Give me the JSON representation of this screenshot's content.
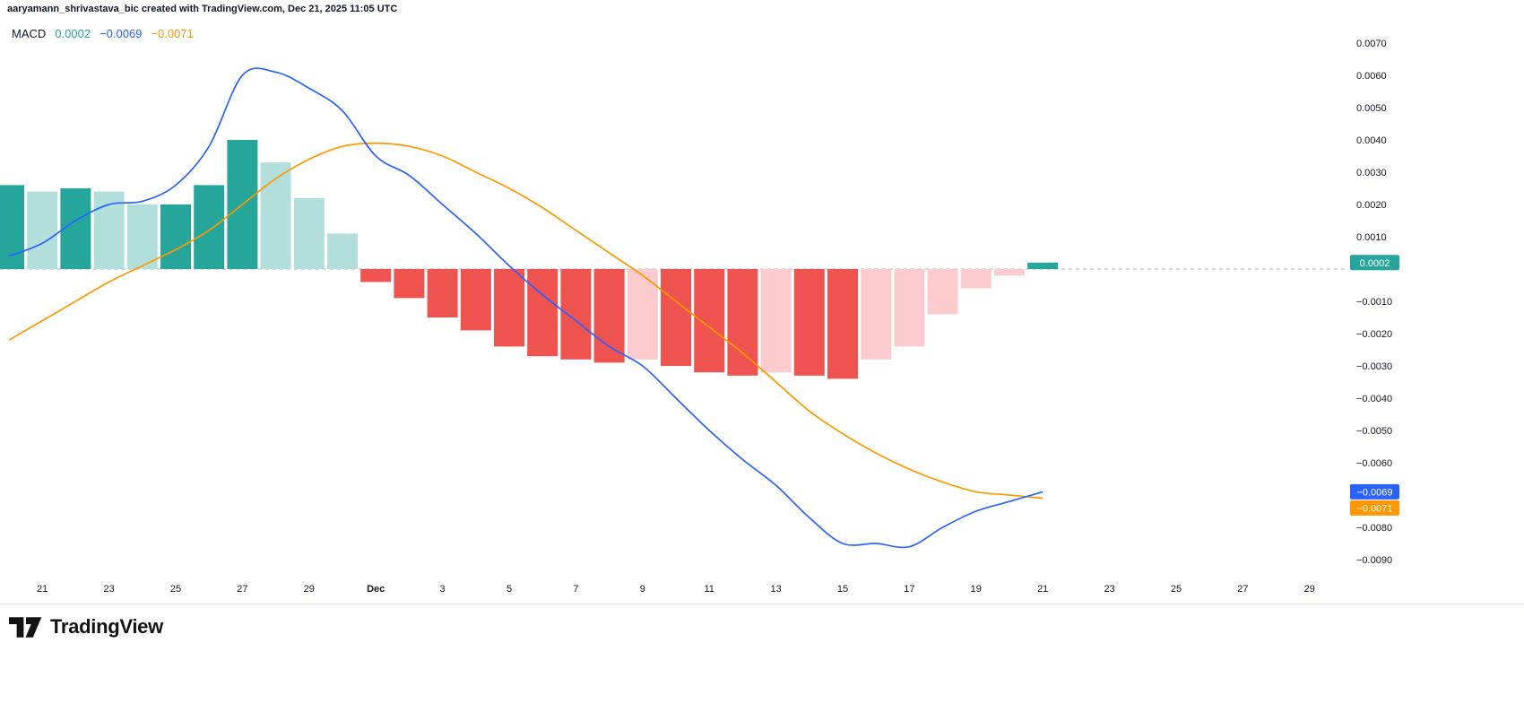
{
  "attribution": "aaryamann_shrivastava_bic created with TradingView.com, Dec 21, 2025 11:05 UTC",
  "indicator": {
    "name": "MACD",
    "histogram_value": "0.0002",
    "macd_value": "−0.0069",
    "signal_value": "−0.0071"
  },
  "logo": {
    "text": "TradingView"
  },
  "palette": {
    "hist_grow_above": "#26a69a",
    "hist_fall_above": "#b2dfdb",
    "hist_fall_below": "#ef5350",
    "hist_grow_below": "#fccbcd",
    "macd_line": "#2962ff",
    "signal_line": "#ff9800",
    "zero_line": "#b2b5be",
    "axis_text": "#131722",
    "separator": "#e0e3eb",
    "badge_text": "#ffffff"
  },
  "axis_badges": [
    {
      "label": "0.0002",
      "value": 0.0002,
      "color": "#26a69a",
      "name": "histogram-value-badge"
    },
    {
      "label": "−0.0069",
      "value": -0.0069,
      "color": "#2962ff",
      "name": "macd-value-badge"
    },
    {
      "label": "−0.0071",
      "value": -0.0071,
      "color": "#ff9800",
      "name": "signal-value-badge"
    }
  ],
  "chart_data": {
    "type": "macd",
    "title": "MACD",
    "x": [
      "Nov 20",
      "Nov 21",
      "Nov 22",
      "Nov 23",
      "Nov 24",
      "Nov 25",
      "Nov 26",
      "Nov 27",
      "Nov 28",
      "Nov 29",
      "Nov 30",
      "Dec 1",
      "Dec 2",
      "Dec 3",
      "Dec 4",
      "Dec 5",
      "Dec 6",
      "Dec 7",
      "Dec 8",
      "Dec 9",
      "Dec 10",
      "Dec 11",
      "Dec 12",
      "Dec 13",
      "Dec 14",
      "Dec 15",
      "Dec 16",
      "Dec 17",
      "Dec 18",
      "Dec 19",
      "Dec 20",
      "Dec 21"
    ],
    "series": [
      {
        "name": "Histogram",
        "type": "bar",
        "color_key": "histogram",
        "values": [
          0.0026,
          0.0024,
          0.0025,
          0.0024,
          0.002,
          0.002,
          0.0026,
          0.004,
          0.0033,
          0.0022,
          0.0011,
          -0.0004,
          -0.0009,
          -0.0015,
          -0.0019,
          -0.0024,
          -0.0027,
          -0.0028,
          -0.0029,
          -0.0028,
          -0.003,
          -0.0032,
          -0.0033,
          -0.0032,
          -0.0033,
          -0.0034,
          -0.0028,
          -0.0024,
          -0.0014,
          -0.0006,
          -0.0002,
          0.0002
        ]
      },
      {
        "name": "MACD",
        "type": "line",
        "color_key": "macd_line",
        "values": [
          0.0004,
          0.0008,
          0.0015,
          0.002,
          0.0021,
          0.0026,
          0.0038,
          0.006,
          0.0061,
          0.0056,
          0.0049,
          0.0035,
          0.0029,
          0.002,
          0.0011,
          0.0001,
          -0.0008,
          -0.0016,
          -0.0024,
          -0.003,
          -0.004,
          -0.005,
          -0.0059,
          -0.0067,
          -0.0077,
          -0.0085,
          -0.0085,
          -0.0086,
          -0.008,
          -0.0075,
          -0.0072,
          -0.0069
        ]
      },
      {
        "name": "Signal",
        "type": "line",
        "color_key": "signal_line",
        "values": [
          -0.0022,
          -0.0016,
          -0.001,
          -0.0004,
          0.0001,
          0.0006,
          0.0012,
          0.002,
          0.0028,
          0.0034,
          0.0038,
          0.0039,
          0.0038,
          0.0035,
          0.003,
          0.0025,
          0.0019,
          0.0012,
          0.0005,
          -0.0002,
          -0.001,
          -0.0018,
          -0.0026,
          -0.0035,
          -0.0044,
          -0.0051,
          -0.0057,
          -0.0062,
          -0.0066,
          -0.0069,
          -0.007,
          -0.0071
        ]
      }
    ],
    "x_ticks": [
      {
        "index": 1,
        "label": "21"
      },
      {
        "index": 3,
        "label": "23"
      },
      {
        "index": 5,
        "label": "25"
      },
      {
        "index": 7,
        "label": "27"
      },
      {
        "index": 9,
        "label": "29"
      },
      {
        "index": 11,
        "label": "Dec"
      },
      {
        "index": 13,
        "label": "3"
      },
      {
        "index": 15,
        "label": "5"
      },
      {
        "index": 17,
        "label": "7"
      },
      {
        "index": 19,
        "label": "9"
      },
      {
        "index": 21,
        "label": "11"
      },
      {
        "index": 23,
        "label": "13"
      },
      {
        "index": 25,
        "label": "15"
      },
      {
        "index": 27,
        "label": "17"
      },
      {
        "index": 29,
        "label": "19"
      },
      {
        "index": 31,
        "label": "21"
      },
      {
        "index": 33,
        "label": "23"
      },
      {
        "index": 35,
        "label": "25"
      },
      {
        "index": 37,
        "label": "27"
      },
      {
        "index": 39,
        "label": "29"
      }
    ],
    "y_ticks": [
      {
        "value": 0.007,
        "label": "0.0070"
      },
      {
        "value": 0.006,
        "label": "0.0060"
      },
      {
        "value": 0.005,
        "label": "0.0050"
      },
      {
        "value": 0.004,
        "label": "0.0040"
      },
      {
        "value": 0.003,
        "label": "0.0030"
      },
      {
        "value": 0.002,
        "label": "0.0020"
      },
      {
        "value": 0.001,
        "label": "0.0010"
      },
      {
        "value": -0.001,
        "label": "−0.0010"
      },
      {
        "value": -0.002,
        "label": "−0.0020"
      },
      {
        "value": -0.003,
        "label": "−0.0030"
      },
      {
        "value": -0.004,
        "label": "−0.0040"
      },
      {
        "value": -0.005,
        "label": "−0.0050"
      },
      {
        "value": -0.006,
        "label": "−0.0060"
      },
      {
        "value": -0.008,
        "label": "−0.0080"
      },
      {
        "value": -0.009,
        "label": "−0.0090"
      }
    ],
    "ylim": [
      -0.0097,
      0.0076
    ],
    "zero_line_value": 0,
    "grid": "off",
    "legend_position": "top-left"
  }
}
